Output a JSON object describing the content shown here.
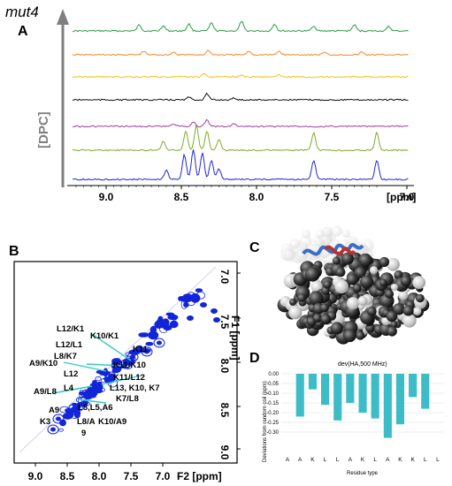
{
  "figure_label": "mut4",
  "panel_a": {
    "letter": "A",
    "ylabel": "[DPC]",
    "x_ticks": [
      "9.0",
      "8.5",
      "8.0",
      "7.5",
      "7.0"
    ],
    "x_unit": "[ppm]",
    "trace_colors": [
      "#2e9b46",
      "#f08a2c",
      "#f2c418",
      "#111111",
      "#a43ea3",
      "#7cab2a",
      "#1f27d6"
    ]
  },
  "panel_b": {
    "letter": "B",
    "x_ticks": [
      "9.0",
      "8.5",
      "8.0",
      "7.5",
      "7.0"
    ],
    "x_axis_label": "F2 [ppm]",
    "y_ticks": [
      "7.0",
      "7.5",
      "8.0",
      "8.5",
      "9.0"
    ],
    "y_axis_label": "F1 [ppm]",
    "assignments": [
      "L12/K1",
      "K10/K1",
      "L12/L1",
      "L8/K7",
      "K11",
      "A9/K10",
      "K11/K10",
      "L12",
      "K11/L12",
      "L4",
      "A9/L8",
      "L13, K10, K7",
      "K7/L8",
      "A9",
      "L8,L5,A6",
      "K3",
      "L8/A",
      "9",
      "K10/A9"
    ]
  },
  "panel_c": {
    "letter": "C"
  },
  "panel_d": {
    "letter": "D",
    "chart_data": {
      "type": "bar",
      "title": "dev(HA,500 MHz)",
      "xlabel": "Residue type",
      "ylabel": "Deviations from random coil (ppm)",
      "categories": [
        "A",
        "A",
        "K",
        "L",
        "L",
        "A",
        "K",
        "L",
        "A",
        "K",
        "K",
        "L",
        "L"
      ],
      "values": [
        null,
        -0.22,
        -0.08,
        -0.16,
        -0.24,
        -0.15,
        -0.2,
        -0.23,
        -0.33,
        -0.26,
        -0.12,
        -0.18,
        null
      ],
      "ylim": [
        -0.35,
        0.0
      ],
      "y_ticks": [
        "0.00",
        "-0.05",
        "-0.10",
        "-0.15",
        "-0.20",
        "-0.25",
        "-0.30"
      ],
      "bar_color": "#3bbcc6",
      "grid": true
    }
  }
}
